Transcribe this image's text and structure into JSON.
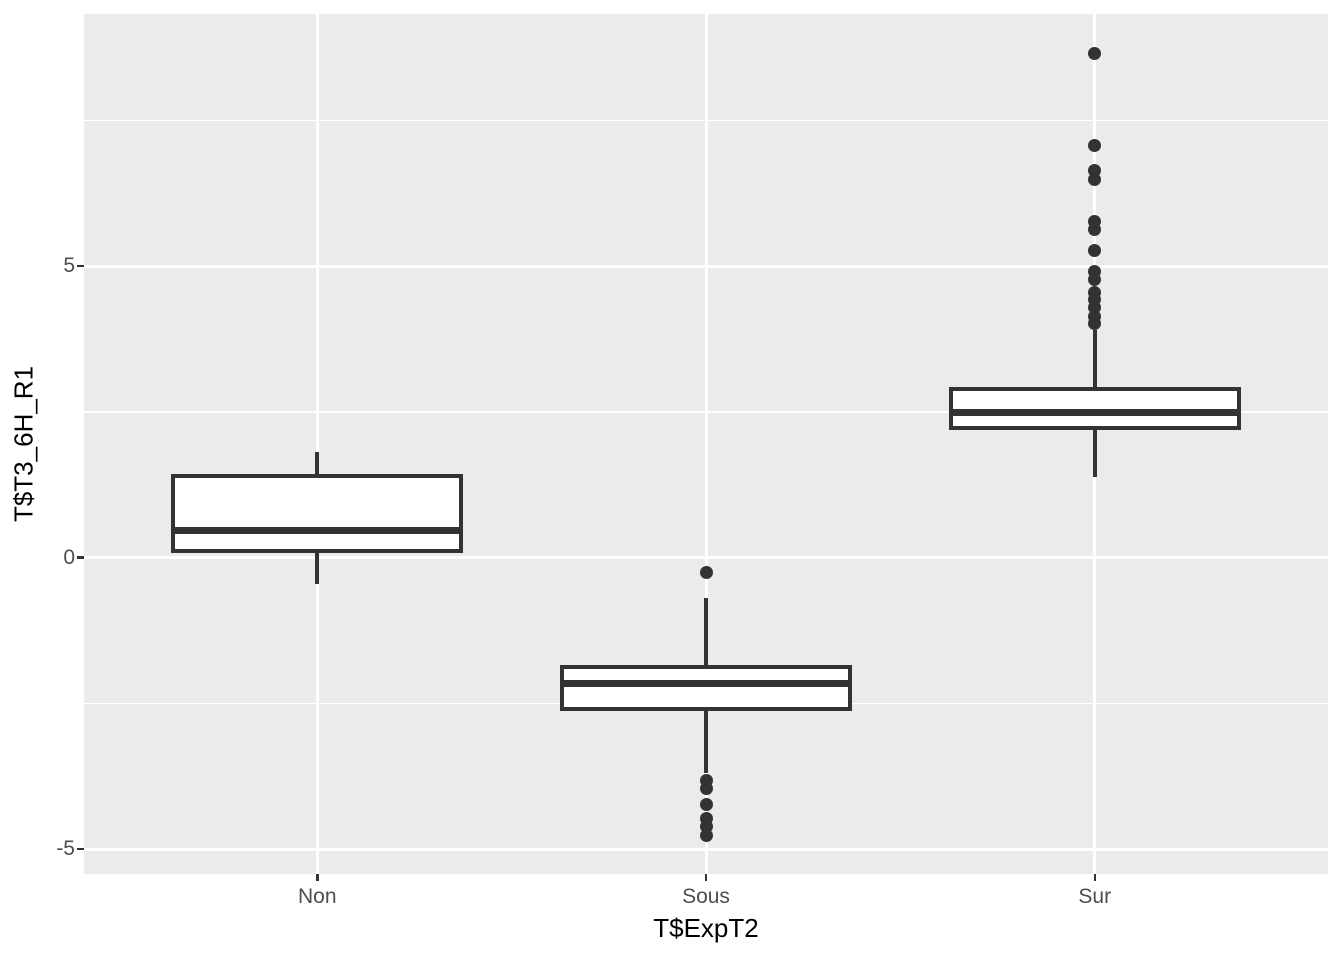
{
  "chart_data": {
    "type": "boxplot",
    "title": "",
    "xlabel": "T$ExpT2",
    "ylabel": "T$T3_6H_R1",
    "categories": [
      "Non",
      "Sous",
      "Sur"
    ],
    "y_axis": {
      "major_ticks": [
        -5,
        0,
        5
      ],
      "major_tick_labels": [
        "-5",
        "0",
        "5"
      ],
      "minor_ticks": [
        -2.5,
        2.5,
        7.5
      ],
      "range": [
        -5.43,
        9.32
      ]
    },
    "grid": true,
    "legend_position": "none",
    "boxes": [
      {
        "category": "Non",
        "whisker_low": -0.45,
        "q1": 0.07,
        "median": 0.47,
        "q3": 1.43,
        "whisker_high": 1.81,
        "outliers": []
      },
      {
        "category": "Sous",
        "whisker_low": -3.7,
        "q1": -2.63,
        "median": -2.16,
        "q3": -1.84,
        "whisker_high": -0.69,
        "outliers": [
          -0.25,
          -3.83,
          -3.97,
          -4.23,
          -4.48,
          -4.62,
          -4.76
        ]
      },
      {
        "category": "Sur",
        "whisker_low": 1.38,
        "q1": 2.19,
        "median": 2.48,
        "q3": 2.93,
        "whisker_high": 3.9,
        "outliers": [
          4.02,
          4.14,
          4.28,
          4.42,
          4.55,
          4.76,
          4.9,
          5.26,
          5.62,
          5.77,
          6.49,
          6.63,
          7.06,
          8.65
        ]
      }
    ],
    "style": {
      "panel_bg": "#EBEBEB",
      "grid_color": "#FFFFFF",
      "box_border_color": "#333333",
      "box_fill_color": "#FFFFFF",
      "outlier_color": "#333333",
      "tick_label_color": "#4D4D4D",
      "axis_title_color": "#000000"
    }
  }
}
